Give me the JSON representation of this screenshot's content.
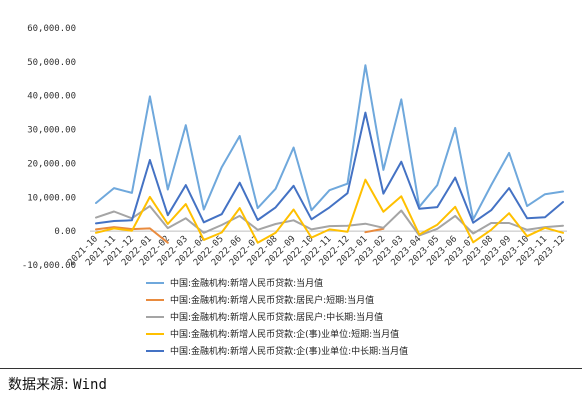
{
  "chart_data": {
    "type": "line",
    "x": [
      "2021-10",
      "2021-11",
      "2021-12",
      "2022-01",
      "2022-02",
      "2022-03",
      "2022-04",
      "2022-05",
      "2022-06",
      "2022-07",
      "2022-08",
      "2022-09",
      "2022-10",
      "2022-11",
      "2022-12",
      "2023-01",
      "2023-02",
      "2023-03",
      "2023-04",
      "2023-05",
      "2023-06",
      "2023-07",
      "2023-08",
      "2023-09",
      "2023-10",
      "2023-11",
      "2023-12"
    ],
    "ylim": [
      -10000,
      60000
    ],
    "yticks": [
      "-10,000.00",
      "0.00",
      "10,000.00",
      "20,000.00",
      "30,000.00",
      "40,000.00",
      "50,000.00",
      "60,000.00"
    ],
    "ytick_values": [
      -10000,
      0,
      10000,
      20000,
      30000,
      40000,
      50000,
      60000
    ],
    "grid": false,
    "legend_position": "bottom",
    "series": [
      {
        "name": "中国:金融机构:新增人民币贷款:当月值",
        "color": "#6fa8dc",
        "values": [
          8300,
          12700,
          11300,
          39800,
          12300,
          31300,
          6400,
          18900,
          28100,
          6800,
          12500,
          24700,
          6200,
          12100,
          14000,
          49000,
          18100,
          38900,
          7200,
          13600,
          30500,
          3500,
          13600,
          23100,
          7400,
          10900,
          11700
        ]
      },
      {
        "name": "中国:金融机构:新增人民币贷款:居民户:短期:当月值",
        "color": "#e98b3e",
        "values": [
          500,
          1200,
          600,
          800,
          -3400,
          null,
          null,
          null,
          null,
          null,
          null,
          null,
          null,
          null,
          null,
          -300,
          700,
          null,
          null,
          null,
          null,
          null,
          null,
          null,
          null,
          null,
          null
        ]
      },
      {
        "name": "中国:金融机构:新增人民币贷款:居民户:中长期:当月值",
        "color": "#a5a5a5",
        "values": [
          4000,
          5800,
          3800,
          7400,
          900,
          3800,
          -500,
          1800,
          4500,
          400,
          2100,
          3200,
          500,
          1500,
          1600,
          2200,
          1000,
          6100,
          -1300,
          700,
          4500,
          -700,
          2400,
          2400,
          400,
          1200,
          1600
        ]
      },
      {
        "name": "中国:金融机构:新增人民币贷款:企(事)业单位:短期:当月值",
        "color": "#ffc000",
        "values": [
          -500,
          800,
          100,
          10100,
          2100,
          8000,
          -2600,
          -400,
          6800,
          -3400,
          -500,
          6400,
          -1900,
          500,
          -200,
          15200,
          5700,
          10300,
          -1000,
          1900,
          7200,
          -3300,
          400,
          5300,
          -1500,
          1000,
          -500
        ]
      },
      {
        "name": "中国:金融机构:新增人民币贷款:企(事)业单位:中长期:当月值",
        "color": "#4472c4",
        "values": [
          2300,
          3000,
          3200,
          21000,
          4700,
          13600,
          2600,
          5000,
          14300,
          3300,
          7000,
          13400,
          3500,
          7000,
          11200,
          35000,
          11100,
          20500,
          6600,
          7100,
          15800,
          2500,
          6200,
          12700,
          3800,
          4100,
          8600
        ]
      }
    ]
  },
  "footer": {
    "source_label": "数据来源:",
    "source_value": "Wind"
  }
}
